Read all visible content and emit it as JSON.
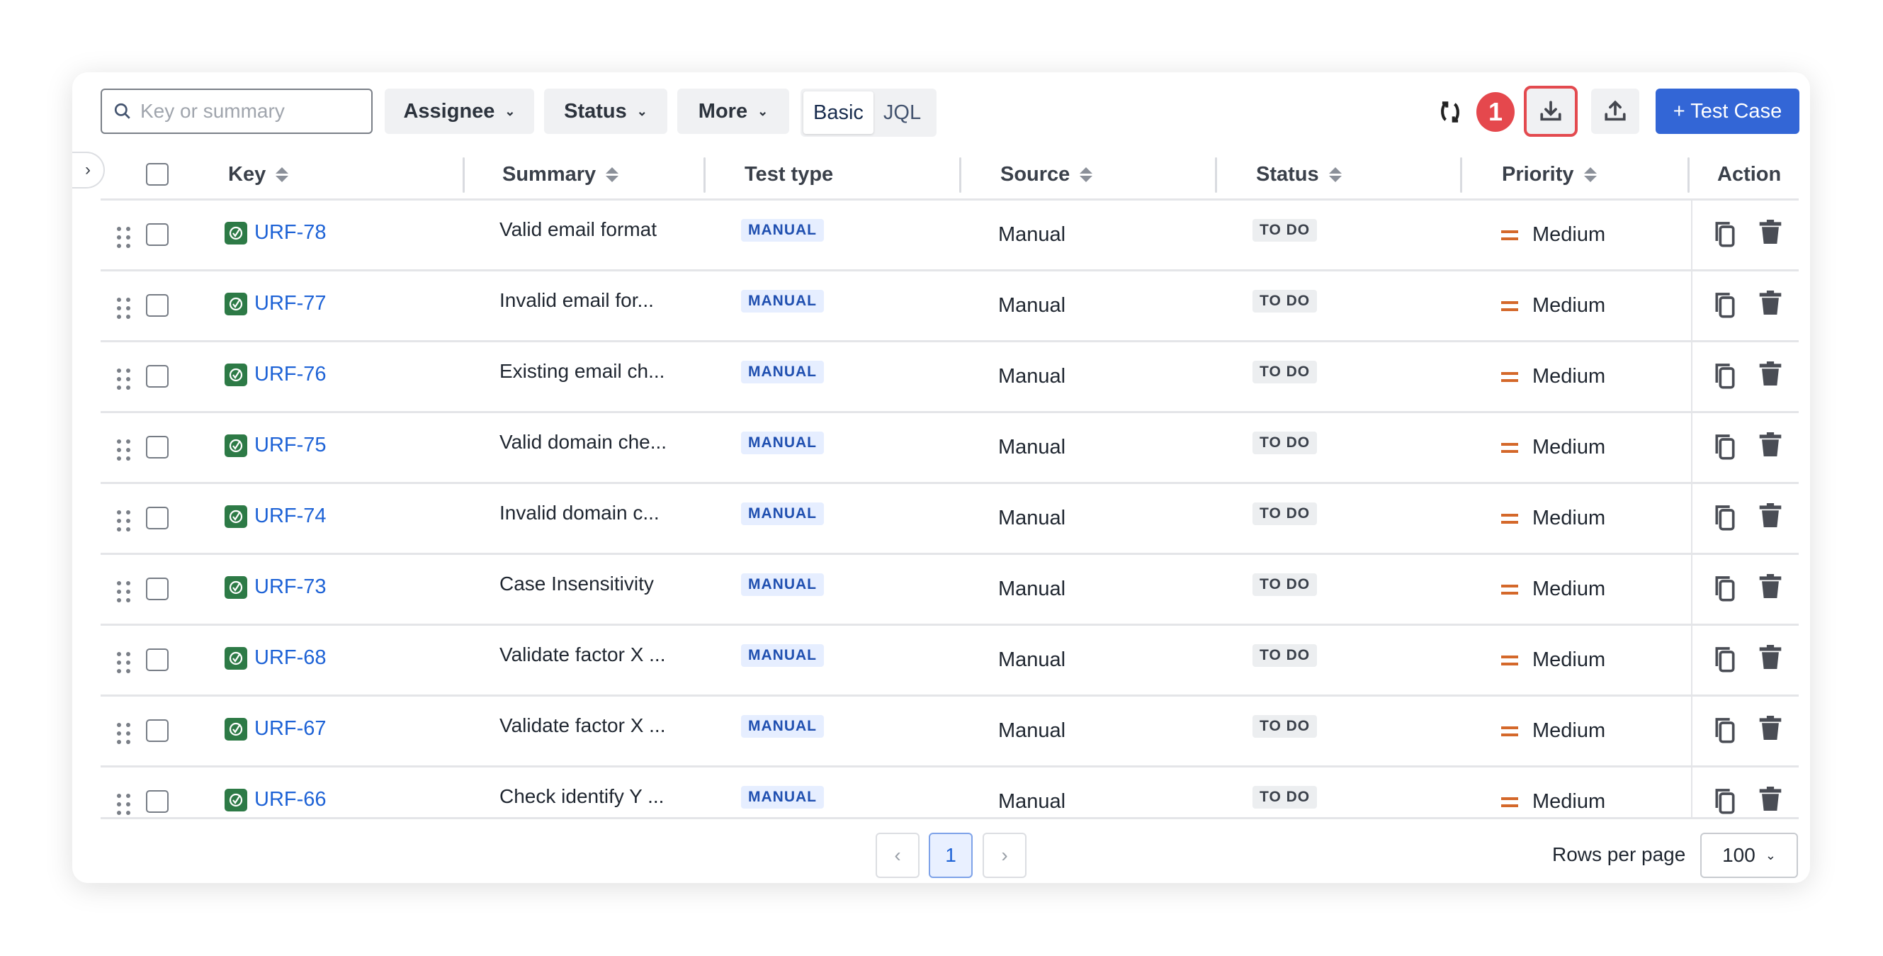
{
  "toolbar": {
    "search_placeholder": "Key or summary",
    "assignee": "Assignee",
    "status": "Status",
    "more": "More",
    "mode_basic": "Basic",
    "mode_jql": "JQL",
    "step_badge": "1",
    "add_button": "+ Test Case",
    "highlight_color": "#e34a4f",
    "accent": "#3366d6"
  },
  "columns": {
    "key": "Key",
    "summary": "Summary",
    "test_type": "Test type",
    "source": "Source",
    "status": "Status",
    "priority": "Priority",
    "action": "Action"
  },
  "rows": [
    {
      "key": "URF-78",
      "summary": "Valid email format",
      "type": "MANUAL",
      "source": "Manual",
      "status": "TO DO",
      "priority": "Medium"
    },
    {
      "key": "URF-77",
      "summary": "Invalid email for...",
      "type": "MANUAL",
      "source": "Manual",
      "status": "TO DO",
      "priority": "Medium"
    },
    {
      "key": "URF-76",
      "summary": "Existing email ch...",
      "type": "MANUAL",
      "source": "Manual",
      "status": "TO DO",
      "priority": "Medium"
    },
    {
      "key": "URF-75",
      "summary": "Valid domain che...",
      "type": "MANUAL",
      "source": "Manual",
      "status": "TO DO",
      "priority": "Medium"
    },
    {
      "key": "URF-74",
      "summary": "Invalid domain c...",
      "type": "MANUAL",
      "source": "Manual",
      "status": "TO DO",
      "priority": "Medium"
    },
    {
      "key": "URF-73",
      "summary": "Case Insensitivity",
      "type": "MANUAL",
      "source": "Manual",
      "status": "TO DO",
      "priority": "Medium"
    },
    {
      "key": "URF-68",
      "summary": "Validate factor X ...",
      "type": "MANUAL",
      "source": "Manual",
      "status": "TO DO",
      "priority": "Medium"
    },
    {
      "key": "URF-67",
      "summary": "Validate factor X ...",
      "type": "MANUAL",
      "source": "Manual",
      "status": "TO DO",
      "priority": "Medium"
    },
    {
      "key": "URF-66",
      "summary": "Check identify Y ...",
      "type": "MANUAL",
      "source": "Manual",
      "status": "TO DO",
      "priority": "Medium"
    }
  ],
  "pagination": {
    "current_page": "1",
    "rows_per_page_label": "Rows per page",
    "rows_per_page": "100"
  }
}
